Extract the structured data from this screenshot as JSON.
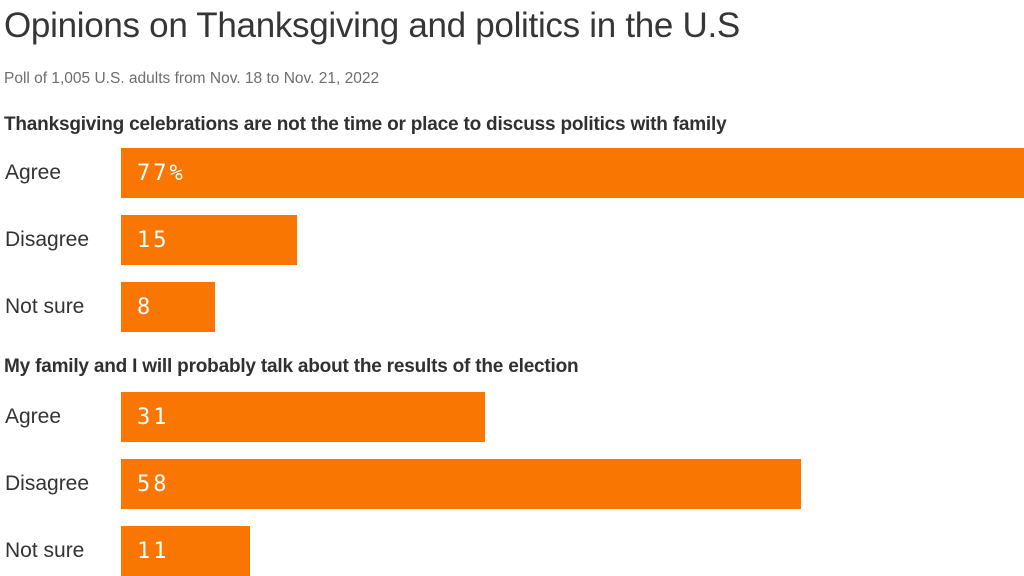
{
  "page": {
    "title": "Opinions on Thanksgiving and politics in the U.S",
    "subtitle": "Poll of 1,005 U.S. adults from Nov. 18 to Nov. 21, 2022"
  },
  "colors": {
    "bar_color": "#f97602",
    "title_color": "#363636",
    "subtitle_color": "#6e6e6e",
    "heading_color": "#303030",
    "label_color": "#333333",
    "value_color": "#ffffff",
    "bg_color": "#ffffff"
  },
  "chart_data": [
    {
      "type": "bar",
      "orientation": "horizontal",
      "title": "Thanksgiving celebrations are not the time or place to discuss politics with family",
      "categories": [
        "Agree",
        "Disagree",
        "Not sure"
      ],
      "values": [
        77,
        15,
        8
      ],
      "value_labels": [
        "77%",
        "15",
        "8"
      ],
      "unit": "percent",
      "xlim": [
        0,
        77
      ],
      "grid": false,
      "legend": false
    },
    {
      "type": "bar",
      "orientation": "horizontal",
      "title": "My family and I will probably talk about the results of the election",
      "categories": [
        "Agree",
        "Disagree",
        "Not sure"
      ],
      "values": [
        31,
        58,
        11
      ],
      "value_labels": [
        "31",
        "58",
        "11"
      ],
      "unit": "percent",
      "xlim": [
        0,
        77
      ],
      "grid": false,
      "legend": false
    }
  ]
}
